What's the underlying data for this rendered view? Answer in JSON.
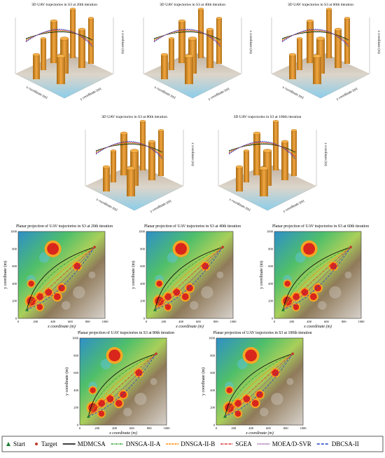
{
  "panels_3d": [
    {
      "title": "3D UAV trajectories in S3 at 20th iteration"
    },
    {
      "title": "3D UAV trajectories in S3 at 40th iteration"
    },
    {
      "title": "3D UAV trajectories in S3 at 60th iteration"
    },
    {
      "title": "3D UAV trajectories in S3 at 80th iteration"
    },
    {
      "title": "3D UAV trajectories in S3 at 100th iteration"
    }
  ],
  "axes_3d": {
    "x_label": "x coordinate (m)",
    "y_label": "y coordinate (m)",
    "z_label": "z coordinate (m)"
  },
  "panels_2d": [
    {
      "title": "Planar projection of UAV trajectories in S3 at 20th iteration"
    },
    {
      "title": "Planar projection of UAV trajectories in S3 at 40th iteration"
    },
    {
      "title": "Planar projection of UAV trajectories in S3 at 60th iteration"
    },
    {
      "title": "Planar projection of UAV trajectories in S3 at 80th iteration"
    },
    {
      "title": "Planar projection of UAV trajectories in S3 at 100th iteration"
    }
  ],
  "axes_2d": {
    "x_label": "x coordinate (m)",
    "y_label": "y coordinate (m)",
    "xlim": [
      0,
      1000
    ],
    "ylim": [
      0,
      1000
    ],
    "xticks": [
      0,
      200,
      400,
      600,
      800,
      1000
    ],
    "yticks": [
      0,
      200,
      400,
      600,
      800,
      1000
    ]
  },
  "legend": [
    {
      "label": "Start",
      "color": "#1e7b32"
    },
    {
      "label": "Target",
      "color": "#c0392b"
    },
    {
      "label": "MDMCSA",
      "color": "#000000"
    },
    {
      "label": "DNSGA-II-A",
      "color": "#2ca02c"
    },
    {
      "label": "DNSGA-II-B",
      "color": "#ff8c00"
    },
    {
      "label": "SGEA",
      "color": "#d62728"
    },
    {
      "label": "MOEA/D-SVR",
      "color": "#7b2d8e"
    },
    {
      "label": "DBCSA-II",
      "color": "#1f3fbf"
    }
  ]
}
